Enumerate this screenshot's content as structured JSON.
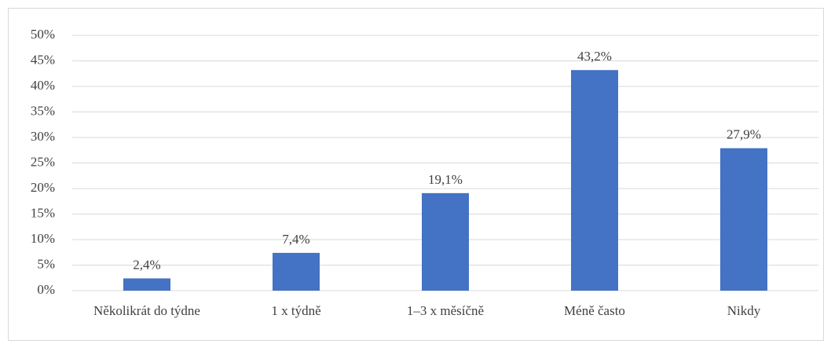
{
  "chart_data": {
    "type": "bar",
    "categories": [
      "Několikrát do týdne",
      "1 x týdně",
      "1–3 x měsíčně",
      "Méně často",
      "Nikdy"
    ],
    "values": [
      2.4,
      7.4,
      19.1,
      43.2,
      27.9
    ],
    "value_labels": [
      "2,4%",
      "7,4%",
      "19,1%",
      "43,2%",
      "27,9%"
    ],
    "color": "#4472c4",
    "ylim": [
      0,
      50
    ],
    "yticks": [
      {
        "value": 0,
        "label": "0%"
      },
      {
        "value": 5,
        "label": "5%"
      },
      {
        "value": 10,
        "label": "10%"
      },
      {
        "value": 15,
        "label": "15%"
      },
      {
        "value": 20,
        "label": "20%"
      },
      {
        "value": 25,
        "label": "25%"
      },
      {
        "value": 30,
        "label": "30%"
      },
      {
        "value": 35,
        "label": "35%"
      },
      {
        "value": 40,
        "label": "40%"
      },
      {
        "value": 45,
        "label": "45%"
      },
      {
        "value": 50,
        "label": "50%"
      }
    ],
    "grid": true
  }
}
